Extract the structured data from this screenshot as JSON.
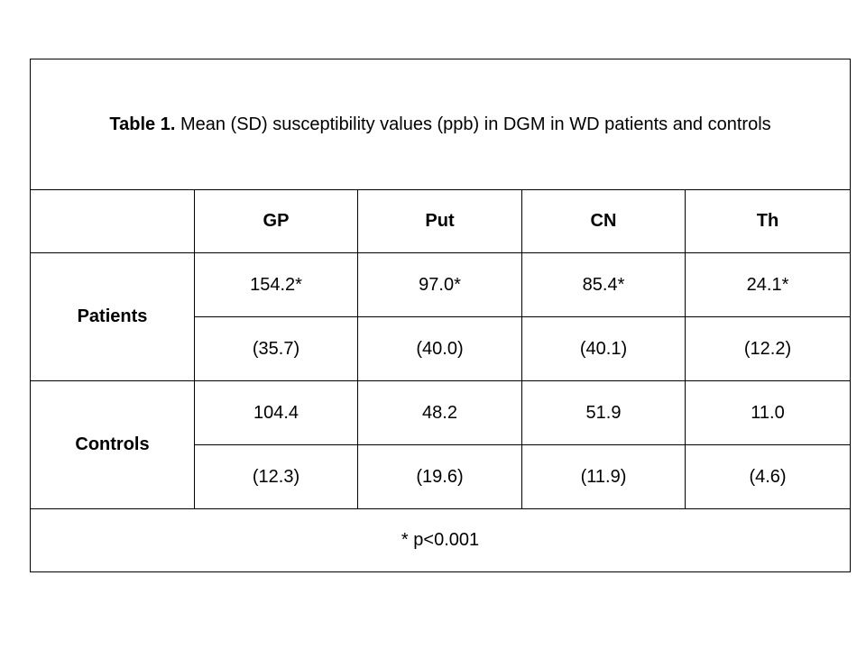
{
  "table": {
    "caption_label": "Table 1.",
    "caption_text": " Mean (SD) susceptibility values (ppb) in DGM in WD patients and controls",
    "columns": [
      "",
      "GP",
      "Put",
      "CN",
      "Th"
    ],
    "groups": [
      {
        "name": "Patients",
        "means": [
          "154.2*",
          "97.0*",
          "85.4*",
          "24.1*"
        ],
        "sds": [
          "(35.7)",
          "(40.0)",
          "(40.1)",
          "(12.2)"
        ]
      },
      {
        "name": "Controls",
        "means": [
          "104.4",
          "48.2",
          "51.9",
          "11.0"
        ],
        "sds": [
          "(12.3)",
          "(19.6)",
          "(11.9)",
          "(4.6)"
        ]
      }
    ],
    "footnote": "* p<0.001"
  }
}
